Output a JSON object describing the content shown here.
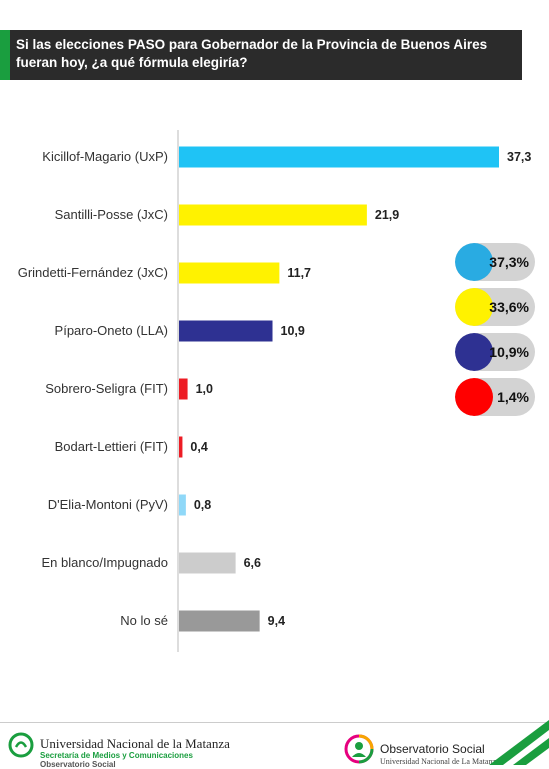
{
  "title": "Si las elecciones PASO para Gobernador de la Provincia de Buenos Aires fueran hoy, ¿a qué fórmula elegiría?",
  "chart_data": {
    "type": "bar",
    "orientation": "horizontal",
    "categories": [
      "Kicillof-Magario (UxP)",
      "Santilli-Posse (JxC)",
      "Grindetti-Fernández (JxC)",
      "Píparo-Oneto (LLA)",
      "Sobrero-Seligra (FIT)",
      "Bodart-Lettieri (FIT)",
      "D'Elia-Montoni (PyV)",
      "En blanco/Impugnado",
      "No lo sé"
    ],
    "values": [
      37.3,
      21.9,
      11.7,
      10.9,
      1.0,
      0.4,
      0.8,
      6.6,
      9.4
    ],
    "value_labels": [
      "37,3",
      "21,9",
      "11,7",
      "10,9",
      "1,0",
      "0,4",
      "0,8",
      "6,6",
      "9,4"
    ],
    "colors": [
      "#1fc3f5",
      "#fff200",
      "#fff200",
      "#2e3192",
      "#ed1c24",
      "#ed1c24",
      "#8fd8f8",
      "#cccccc",
      "#999999"
    ],
    "xlim": [
      0,
      37.3
    ],
    "grid": false
  },
  "summary": [
    {
      "label": "37,3%",
      "color": "#29abe2"
    },
    {
      "label": "33,6%",
      "color": "#fff200"
    },
    {
      "label": "10,9%",
      "color": "#2e3192"
    },
    {
      "label": "1,4%",
      "color": "#ff0000"
    }
  ],
  "footer": {
    "university": "Universidad Nacional de la Matanza",
    "university_sub1": "Secretaría de Medios y Comunicaciones",
    "university_sub2": "Observatorio Social",
    "observatorio": "Observatorio Social",
    "observatorio_sub": "Universidad Nacional de La Matanza",
    "accent_green": "#1a9e3f",
    "icons": [
      "university-logo-icon",
      "observatorio-logo-icon"
    ]
  }
}
